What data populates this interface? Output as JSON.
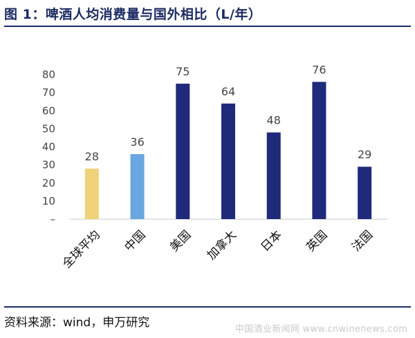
{
  "header": {
    "title": "图 1：啤酒人均消费量与国外相比（L/年）"
  },
  "chart_data": {
    "type": "bar",
    "title": "图 1：啤酒人均消费量与国外相比（L/年）",
    "xlabel": "",
    "ylabel": "",
    "ylim": [
      0,
      80
    ],
    "yticks": [
      0,
      10,
      20,
      30,
      40,
      50,
      60,
      70,
      80
    ],
    "ytick_labels": [
      "–",
      "10",
      "20",
      "30",
      "40",
      "50",
      "60",
      "70",
      "80"
    ],
    "grid": false,
    "legend": "none",
    "categories": [
      "全球平均",
      "中国",
      "美国",
      "加拿大",
      "日本",
      "英国",
      "法国"
    ],
    "values": [
      28,
      36,
      75,
      64,
      48,
      76,
      29
    ],
    "colors": [
      "#f0d27a",
      "#6aa6e0",
      "#1f2a7a",
      "#1f2a7a",
      "#1f2a7a",
      "#1f2a7a",
      "#1f2a7a"
    ]
  },
  "footer": {
    "source": "资料来源：wind，申万研究",
    "watermark": "中国酒业新闻网 www.cnwinenews.com"
  }
}
